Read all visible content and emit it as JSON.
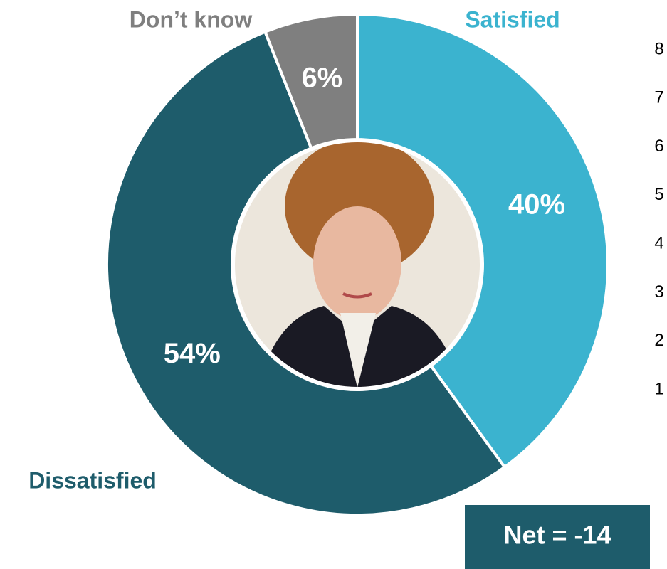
{
  "chart_data": {
    "type": "pie",
    "categories": [
      "Satisfied",
      "Dissatisfied",
      "Don’t know"
    ],
    "values": [
      40,
      54,
      6
    ],
    "value_labels": [
      "40%",
      "54%",
      "6%"
    ],
    "colors": [
      "#3bb3cf",
      "#1e5c6b",
      "#7f7f7f"
    ],
    "donut": true,
    "side_labels": [
      8,
      7,
      6,
      5,
      4,
      3,
      2,
      1
    ],
    "net_label": "Net = -14"
  }
}
